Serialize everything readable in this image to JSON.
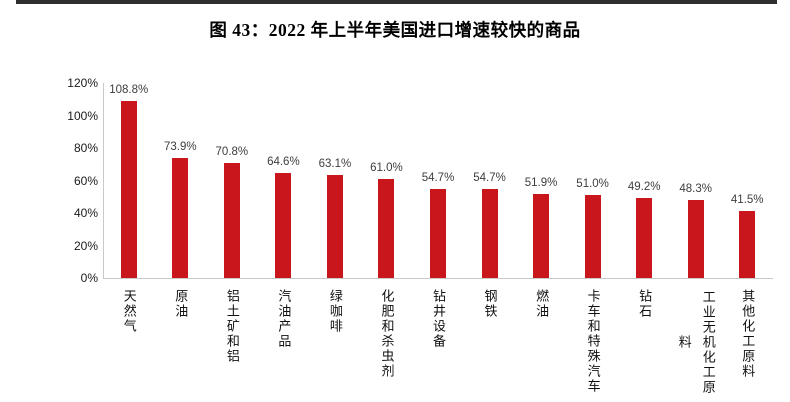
{
  "figure": {
    "title": "图 43：2022 年上半年美国进口增速较快的商品"
  },
  "chart_data": {
    "type": "bar",
    "title": "图 43：2022 年上半年美国进口增速较快的商品",
    "categories": [
      "天然气",
      "原油",
      "铝土矿和铝",
      "汽油产品",
      "绿咖啡",
      "化肥和杀虫剂",
      "钻井设备",
      "钢铁",
      "燃油",
      "卡车和特殊汽车",
      "钻石",
      "工业无机化工原料",
      "其他化工原料"
    ],
    "values": [
      108.8,
      73.9,
      70.8,
      64.6,
      63.1,
      61.0,
      54.7,
      54.7,
      51.9,
      51.0,
      49.2,
      48.3,
      41.5
    ],
    "value_labels": [
      "108.8%",
      "73.9%",
      "70.8%",
      "64.6%",
      "63.1%",
      "61.0%",
      "54.7%",
      "54.7%",
      "51.9%",
      "51.0%",
      "49.2%",
      "48.3%",
      "41.5%"
    ],
    "ytick_values": [
      0,
      20,
      40,
      60,
      80,
      100,
      120
    ],
    "ytick_labels": [
      "0%",
      "20%",
      "40%",
      "60%",
      "80%",
      "100%",
      "120%"
    ],
    "ylim": [
      0,
      120
    ],
    "xlabel": "",
    "ylabel": "",
    "grid": false,
    "legend": null,
    "colors": {
      "bar": "#c9161d",
      "axis_line": "#c9c9c9",
      "value_label": "#3d3d3d",
      "tick_label": "#1a1a1a"
    }
  }
}
